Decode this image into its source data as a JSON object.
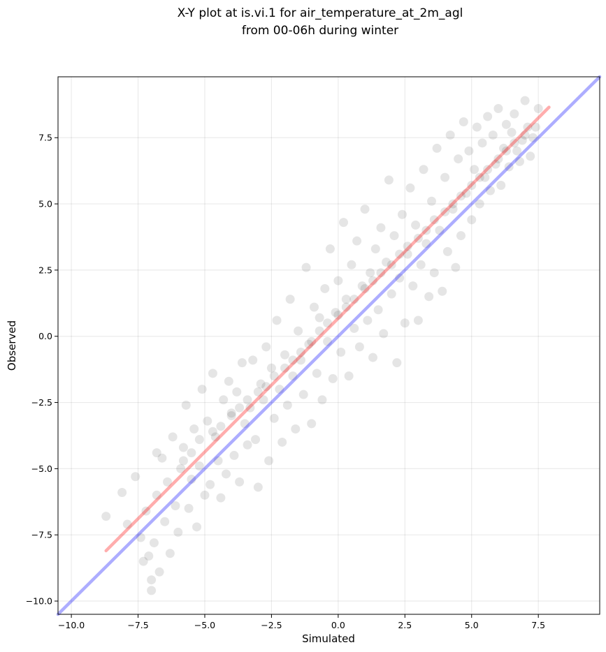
{
  "chart_data": {
    "type": "scatter",
    "title_lines": [
      "X-Y plot at is.vi.1 for air_temperature_at_2m_agl",
      "from 00-06h during winter"
    ],
    "xlabel": "Simulated",
    "ylabel": "Observed",
    "xlim": [
      -10.5,
      9.8
    ],
    "ylim": [
      -10.5,
      9.8
    ],
    "xticks": [
      -10.0,
      -7.5,
      -5.0,
      -2.5,
      0.0,
      2.5,
      5.0,
      7.5
    ],
    "yticks": [
      -10.0,
      -7.5,
      -5.0,
      -2.5,
      0.0,
      2.5,
      5.0,
      7.5
    ],
    "xtick_labels": [
      "−10.0",
      "−7.5",
      "−5.0",
      "−2.5",
      "0.0",
      "2.5",
      "5.0",
      "7.5"
    ],
    "ytick_labels": [
      "−10.0",
      "−7.5",
      "−5.0",
      "−2.5",
      "0.0",
      "2.5",
      "5.0",
      "7.5"
    ],
    "grid": true,
    "series": [
      {
        "kind": "scatter",
        "color": "#000000",
        "opacity": 0.1,
        "points": [
          [
            -8.7,
            -6.8
          ],
          [
            -8.1,
            -5.9
          ],
          [
            -7.9,
            -7.1
          ],
          [
            -7.6,
            -5.3
          ],
          [
            -7.4,
            -7.6
          ],
          [
            -7.3,
            -8.5
          ],
          [
            -7.2,
            -6.6
          ],
          [
            -7.1,
            -8.3
          ],
          [
            -7.0,
            -9.6
          ],
          [
            -7.0,
            -9.2
          ],
          [
            -6.9,
            -7.8
          ],
          [
            -6.8,
            -4.4
          ],
          [
            -6.8,
            -6.0
          ],
          [
            -6.7,
            -8.9
          ],
          [
            -6.6,
            -4.6
          ],
          [
            -6.5,
            -7.0
          ],
          [
            -6.4,
            -5.5
          ],
          [
            -6.3,
            -8.2
          ],
          [
            -6.2,
            -3.8
          ],
          [
            -6.1,
            -6.4
          ],
          [
            -6.0,
            -7.4
          ],
          [
            -5.9,
            -5.0
          ],
          [
            -5.8,
            -4.2
          ],
          [
            -5.7,
            -2.6
          ],
          [
            -5.6,
            -6.5
          ],
          [
            -5.5,
            -5.4
          ],
          [
            -5.4,
            -3.5
          ],
          [
            -5.3,
            -7.2
          ],
          [
            -5.2,
            -4.9
          ],
          [
            -5.1,
            -2.0
          ],
          [
            -5.0,
            -6.0
          ],
          [
            -4.9,
            -3.2
          ],
          [
            -4.8,
            -5.6
          ],
          [
            -4.7,
            -1.4
          ],
          [
            -4.6,
            -3.8
          ],
          [
            -4.5,
            -4.7
          ],
          [
            -4.4,
            -6.1
          ],
          [
            -4.3,
            -2.4
          ],
          [
            -4.2,
            -5.2
          ],
          [
            -4.1,
            -1.7
          ],
          [
            -4.0,
            -3.0
          ],
          [
            -3.9,
            -4.5
          ],
          [
            -3.8,
            -2.1
          ],
          [
            -3.7,
            -5.5
          ],
          [
            -3.6,
            -1.0
          ],
          [
            -3.5,
            -3.3
          ],
          [
            -3.4,
            -4.1
          ],
          [
            -3.3,
            -2.7
          ],
          [
            -3.2,
            -0.9
          ],
          [
            -3.1,
            -3.9
          ],
          [
            -3.0,
            -5.7
          ],
          [
            -2.9,
            -1.8
          ],
          [
            -2.8,
            -2.4
          ],
          [
            -2.7,
            -0.4
          ],
          [
            -2.6,
            -4.7
          ],
          [
            -2.5,
            -1.2
          ],
          [
            -2.4,
            -3.1
          ],
          [
            -2.3,
            0.6
          ],
          [
            -2.2,
            -2.0
          ],
          [
            -2.1,
            -4.0
          ],
          [
            -2.0,
            -0.7
          ],
          [
            -1.9,
            -2.6
          ],
          [
            -1.8,
            1.4
          ],
          [
            -1.7,
            -1.5
          ],
          [
            -1.6,
            -3.5
          ],
          [
            -1.5,
            0.2
          ],
          [
            -1.4,
            -0.9
          ],
          [
            -1.3,
            -2.2
          ],
          [
            -1.2,
            2.6
          ],
          [
            -1.1,
            -0.3
          ],
          [
            -1.0,
            -3.3
          ],
          [
            -0.9,
            1.1
          ],
          [
            -0.8,
            -1.4
          ],
          [
            -0.7,
            0.7
          ],
          [
            -0.6,
            -2.4
          ],
          [
            -0.5,
            1.8
          ],
          [
            -0.4,
            -0.2
          ],
          [
            -0.3,
            3.3
          ],
          [
            -0.2,
            -1.6
          ],
          [
            -0.1,
            0.9
          ],
          [
            0.0,
            2.1
          ],
          [
            0.1,
            -0.6
          ],
          [
            0.2,
            4.3
          ],
          [
            0.3,
            1.4
          ],
          [
            0.4,
            -1.5
          ],
          [
            0.5,
            2.7
          ],
          [
            0.6,
            0.3
          ],
          [
            0.7,
            3.6
          ],
          [
            0.8,
            -0.4
          ],
          [
            0.9,
            1.9
          ],
          [
            1.0,
            4.8
          ],
          [
            1.1,
            0.6
          ],
          [
            1.2,
            2.4
          ],
          [
            1.3,
            -0.8
          ],
          [
            1.4,
            3.3
          ],
          [
            1.5,
            1.0
          ],
          [
            1.6,
            4.1
          ],
          [
            1.7,
            0.1
          ],
          [
            1.8,
            2.8
          ],
          [
            1.9,
            5.9
          ],
          [
            2.0,
            1.6
          ],
          [
            2.1,
            3.8
          ],
          [
            2.2,
            -1.0
          ],
          [
            2.3,
            2.2
          ],
          [
            2.4,
            4.6
          ],
          [
            2.5,
            0.5
          ],
          [
            2.6,
            3.1
          ],
          [
            2.7,
            5.6
          ],
          [
            2.8,
            1.9
          ],
          [
            2.9,
            4.2
          ],
          [
            3.0,
            0.6
          ],
          [
            3.1,
            2.7
          ],
          [
            3.2,
            6.3
          ],
          [
            3.3,
            3.5
          ],
          [
            3.4,
            1.5
          ],
          [
            3.5,
            5.1
          ],
          [
            3.6,
            2.4
          ],
          [
            3.7,
            7.1
          ],
          [
            3.8,
            4.0
          ],
          [
            3.9,
            1.7
          ],
          [
            4.0,
            6.0
          ],
          [
            4.1,
            3.2
          ],
          [
            4.2,
            7.6
          ],
          [
            4.3,
            4.8
          ],
          [
            4.4,
            2.6
          ],
          [
            4.5,
            6.7
          ],
          [
            4.6,
            3.8
          ],
          [
            4.7,
            8.1
          ],
          [
            4.8,
            5.4
          ],
          [
            4.9,
            7.0
          ],
          [
            5.0,
            4.4
          ],
          [
            5.1,
            6.3
          ],
          [
            5.2,
            7.9
          ],
          [
            5.3,
            5.0
          ],
          [
            5.4,
            7.3
          ],
          [
            5.5,
            6.0
          ],
          [
            5.6,
            8.3
          ],
          [
            5.7,
            5.5
          ],
          [
            5.8,
            7.6
          ],
          [
            5.9,
            6.5
          ],
          [
            6.0,
            8.6
          ],
          [
            6.1,
            5.7
          ],
          [
            6.2,
            7.1
          ],
          [
            6.3,
            8.0
          ],
          [
            6.4,
            6.4
          ],
          [
            6.5,
            7.7
          ],
          [
            6.6,
            8.4
          ],
          [
            6.7,
            7.0
          ],
          [
            6.8,
            6.6
          ],
          [
            6.9,
            7.4
          ],
          [
            7.0,
            8.9
          ],
          [
            7.1,
            7.9
          ],
          [
            7.2,
            6.8
          ],
          [
            7.3,
            7.5
          ],
          [
            7.4,
            7.9
          ],
          [
            7.5,
            8.6
          ],
          [
            -5.8,
            -4.7
          ],
          [
            -5.5,
            -4.4
          ],
          [
            -5.2,
            -3.9
          ],
          [
            -4.7,
            -3.6
          ],
          [
            -4.4,
            -3.4
          ],
          [
            -4.0,
            -2.9
          ],
          [
            -3.7,
            -2.7
          ],
          [
            -3.4,
            -2.4
          ],
          [
            -3.0,
            -2.1
          ],
          [
            -2.7,
            -1.9
          ],
          [
            -2.4,
            -1.5
          ],
          [
            -2.0,
            -1.2
          ],
          [
            -1.7,
            -0.9
          ],
          [
            -1.4,
            -0.6
          ],
          [
            -1.0,
            -0.2
          ],
          [
            -0.7,
            0.2
          ],
          [
            -0.4,
            0.5
          ],
          [
            0.0,
            0.8
          ],
          [
            0.3,
            1.1
          ],
          [
            0.6,
            1.4
          ],
          [
            1.0,
            1.8
          ],
          [
            1.3,
            2.1
          ],
          [
            1.6,
            2.4
          ],
          [
            2.0,
            2.7
          ],
          [
            2.3,
            3.1
          ],
          [
            2.6,
            3.4
          ],
          [
            3.0,
            3.7
          ],
          [
            3.3,
            4.0
          ],
          [
            3.6,
            4.4
          ],
          [
            4.0,
            4.7
          ],
          [
            4.3,
            5.0
          ],
          [
            4.6,
            5.3
          ],
          [
            5.0,
            5.7
          ],
          [
            5.3,
            6.0
          ],
          [
            5.6,
            6.3
          ],
          [
            6.0,
            6.7
          ],
          [
            6.3,
            7.0
          ],
          [
            6.6,
            7.3
          ],
          [
            7.0,
            7.6
          ]
        ]
      },
      {
        "kind": "line",
        "color": "#ff0000",
        "opacity": 0.32,
        "points": [
          [
            -8.7,
            -8.1
          ],
          [
            7.9,
            8.65
          ]
        ]
      },
      {
        "kind": "line",
        "color": "#0000ff",
        "opacity": 0.32,
        "points": [
          [
            -10.5,
            -10.5
          ],
          [
            9.8,
            9.8
          ]
        ]
      }
    ]
  }
}
